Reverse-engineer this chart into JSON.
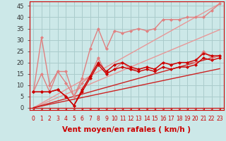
{
  "bg_color": "#cce8e8",
  "grid_color": "#aacccc",
  "xlabel": "Vent moyen/en rafales ( km/h )",
  "xlim": [
    -0.5,
    23.5
  ],
  "ylim": [
    -1,
    47
  ],
  "yticks": [
    0,
    5,
    10,
    15,
    20,
    25,
    30,
    35,
    40,
    45
  ],
  "xticks": [
    0,
    1,
    2,
    3,
    4,
    5,
    6,
    7,
    8,
    9,
    10,
    11,
    12,
    13,
    14,
    15,
    16,
    17,
    18,
    19,
    20,
    21,
    22,
    23
  ],
  "lines": [
    {
      "x": [
        0,
        1,
        2,
        3,
        4,
        5,
        6,
        7,
        8,
        9,
        10,
        11,
        12,
        13,
        14,
        15,
        16,
        17,
        18,
        19,
        20,
        21,
        22,
        23
      ],
      "y": [
        7,
        31,
        10,
        16,
        16,
        5,
        13,
        26,
        35,
        26,
        34,
        33,
        34,
        35,
        34,
        35,
        39,
        39,
        39,
        40,
        40,
        40,
        43,
        46
      ],
      "color": "#e08080",
      "lw": 1.0,
      "marker": "D",
      "ms": 2.0,
      "zorder": 2
    },
    {
      "x": [
        0,
        1,
        2,
        3,
        4,
        5,
        6,
        7,
        8,
        9,
        10,
        11,
        12,
        13,
        14,
        15,
        16,
        17,
        18,
        19,
        20,
        21,
        22,
        23
      ],
      "y": [
        7,
        15,
        7,
        16,
        11,
        5,
        11,
        14,
        22,
        15,
        17,
        20,
        17,
        17,
        18,
        17,
        20,
        19,
        20,
        20,
        20,
        25,
        22,
        23
      ],
      "color": "#e08080",
      "lw": 1.0,
      "marker": "D",
      "ms": 2.0,
      "zorder": 2
    },
    {
      "x": [
        0,
        23
      ],
      "y": [
        0,
        46
      ],
      "color": "#e89898",
      "lw": 1.0,
      "marker": null,
      "ms": 0,
      "zorder": 1
    },
    {
      "x": [
        0,
        23
      ],
      "y": [
        0,
        34.5
      ],
      "color": "#e89898",
      "lw": 1.0,
      "marker": null,
      "ms": 0,
      "zorder": 1
    },
    {
      "x": [
        0,
        23
      ],
      "y": [
        0,
        23
      ],
      "color": "#cc2222",
      "lw": 1.0,
      "marker": null,
      "ms": 0,
      "zorder": 1
    },
    {
      "x": [
        0,
        23
      ],
      "y": [
        0,
        17.25
      ],
      "color": "#cc2222",
      "lw": 1.0,
      "marker": null,
      "ms": 0,
      "zorder": 1
    },
    {
      "x": [
        0,
        1,
        2,
        3,
        4,
        5,
        6,
        7,
        8,
        9,
        10,
        11,
        12,
        13,
        14,
        15,
        16,
        17,
        18,
        19,
        20,
        21,
        22,
        23
      ],
      "y": [
        7,
        7,
        7,
        8,
        5,
        1,
        8,
        14,
        20,
        16,
        19,
        20,
        18,
        17,
        18,
        17,
        20,
        19,
        20,
        20,
        21,
        24,
        23,
        23
      ],
      "color": "#cc0000",
      "lw": 1.0,
      "marker": "D",
      "ms": 2.0,
      "zorder": 3
    },
    {
      "x": [
        0,
        1,
        2,
        3,
        4,
        5,
        6,
        7,
        8,
        9,
        10,
        11,
        12,
        13,
        14,
        15,
        16,
        17,
        18,
        19,
        20,
        21,
        22,
        23
      ],
      "y": [
        7,
        7,
        7,
        8,
        5,
        1,
        7,
        13,
        19,
        15,
        17,
        18,
        17,
        16,
        17,
        16,
        18,
        17,
        18,
        18,
        19,
        22,
        21,
        22
      ],
      "color": "#cc0000",
      "lw": 1.0,
      "marker": "D",
      "ms": 2.0,
      "zorder": 3
    }
  ],
  "arrow_color": "#cc0000",
  "xlabel_color": "#cc0000",
  "xlabel_fontsize": 7.5,
  "ytick_fontsize": 6,
  "xtick_fontsize": 5.5
}
